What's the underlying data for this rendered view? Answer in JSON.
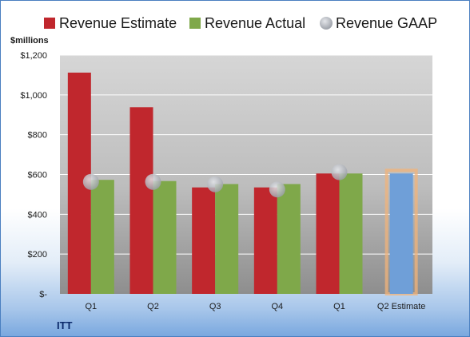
{
  "chart_data": {
    "type": "bar",
    "company": "ITT",
    "unit_label": "$millions",
    "categories": [
      "Q1",
      "Q2",
      "Q3",
      "Q4",
      "Q1",
      "Q2 Estimate"
    ],
    "series": [
      {
        "name": "Revenue Estimate",
        "color": "#c0272d",
        "values": [
          1112,
          938,
          535,
          535,
          605,
          null
        ]
      },
      {
        "name": "Revenue Actual",
        "color": "#7fa84a",
        "values": [
          573,
          567,
          552,
          552,
          605,
          605
        ]
      },
      {
        "name": "Revenue GAAP",
        "color": "#b8bcc4",
        "values": [
          563,
          563,
          551,
          525,
          612,
          null
        ]
      }
    ],
    "estimate_bar": {
      "category": "Q2 Estimate",
      "value": 605,
      "color": "#6f9fd8",
      "outline": "#f2b37a"
    },
    "ylim": [
      0,
      1200
    ],
    "yticks": [
      0,
      200,
      400,
      600,
      800,
      1000,
      1200
    ],
    "ytick_labels": [
      "$-",
      "$200",
      "$400",
      "$600",
      "$800",
      "$1,000",
      "$1,200"
    ],
    "grid": true,
    "legend": "top"
  }
}
